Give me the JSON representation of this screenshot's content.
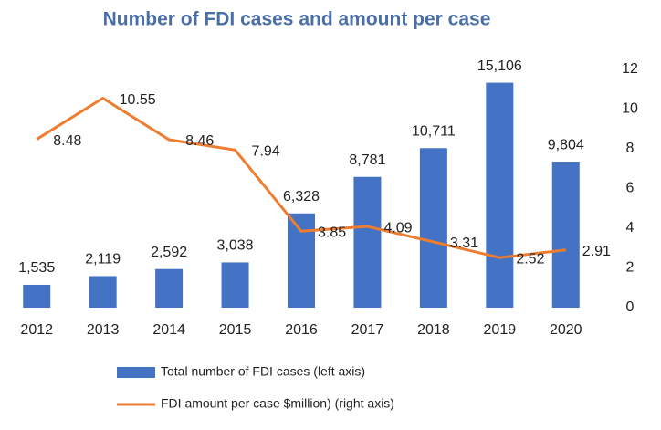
{
  "chart_data": {
    "type": "bar-line",
    "title": "Number of FDI cases and amount per case",
    "categories": [
      "2012",
      "2013",
      "2014",
      "2015",
      "2016",
      "2017",
      "2018",
      "2019",
      "2020"
    ],
    "ylim": [
      0,
      16000
    ],
    "y2lim": [
      0,
      12
    ],
    "y2ticks": [
      0,
      2,
      4,
      6,
      8,
      10,
      12
    ],
    "series": [
      {
        "name": "Total number of FDI cases (left axis)",
        "color": "#4472c4",
        "type": "bar",
        "values": [
          1535,
          2119,
          2592,
          3038,
          6328,
          8781,
          10711,
          15106,
          9804
        ],
        "value_labels": [
          "1,535",
          "2,119",
          "2,592",
          "3,038",
          "6,328",
          "8,781",
          "10,711",
          "15,106",
          "9,804"
        ]
      },
      {
        "name": "FDI amount per case $million) (right axis)",
        "color": "#ed7d31",
        "type": "line",
        "axis": "y2",
        "values": [
          8.48,
          10.55,
          8.46,
          7.94,
          3.85,
          4.09,
          3.31,
          2.52,
          2.91
        ]
      }
    ]
  }
}
